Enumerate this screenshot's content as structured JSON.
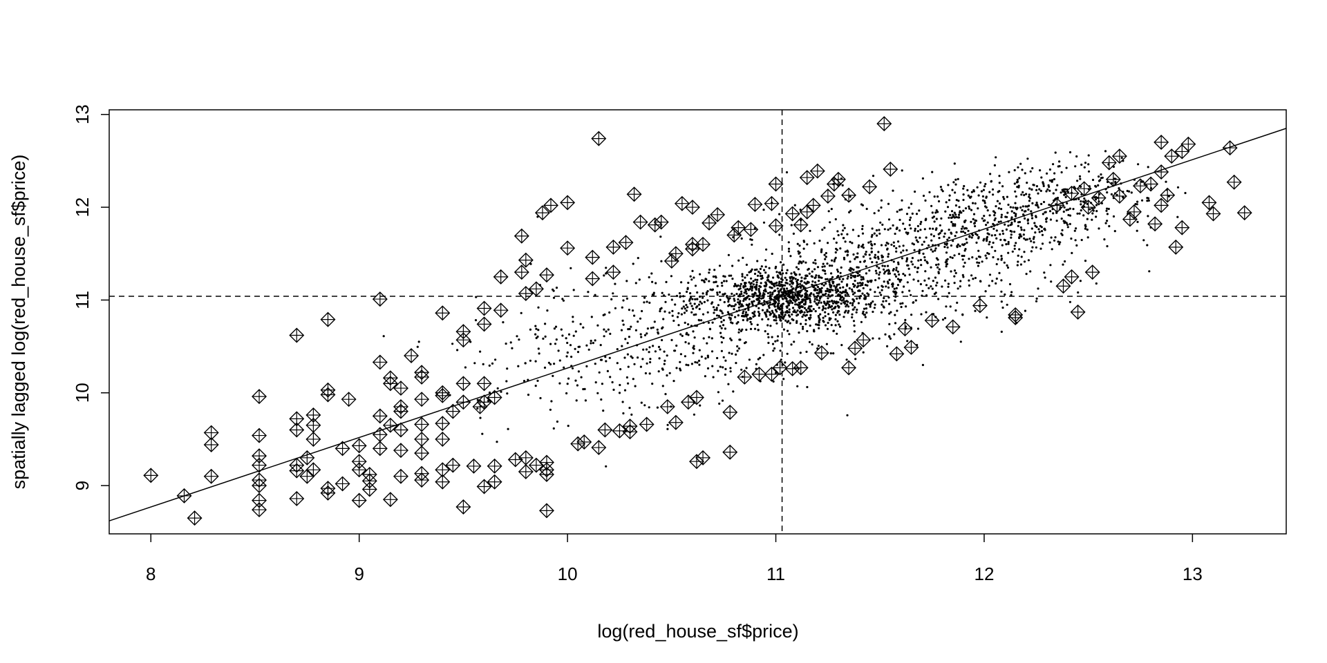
{
  "chart_data": {
    "type": "scatter",
    "title": "",
    "xlabel": "log(red_house_sf$price)",
    "ylabel": "spatially lagged log(red_house_sf$price)",
    "xlim": [
      7.8,
      13.45
    ],
    "ylim": [
      8.48,
      13.05
    ],
    "x_ticks": [
      "8",
      "9",
      "10",
      "11",
      "12",
      "13"
    ],
    "y_ticks": [
      "9",
      "10",
      "11",
      "12",
      "13"
    ],
    "grid": false,
    "legend": "none",
    "mean_lines": {
      "x_mean": 11.03,
      "y_mean": 11.04,
      "style": "dashed"
    },
    "regression_line": {
      "x": [
        7.8,
        13.45
      ],
      "y": [
        8.62,
        12.85
      ]
    },
    "bulk_points_note_free": true,
    "bulk_cloud": {
      "clusters": [
        {
          "x_mean": 11.05,
          "y_mean": 11.02,
          "x_sd": 0.22,
          "y_sd": 0.16,
          "n": 900
        },
        {
          "x_mean": 11.5,
          "y_mean": 11.3,
          "x_sd": 0.35,
          "y_sd": 0.3,
          "n": 600
        },
        {
          "x_mean": 12.0,
          "y_mean": 11.85,
          "x_sd": 0.28,
          "y_sd": 0.25,
          "n": 500
        },
        {
          "x_mean": 10.55,
          "y_mean": 10.65,
          "x_sd": 0.35,
          "y_sd": 0.35,
          "n": 350
        },
        {
          "x_mean": 12.45,
          "y_mean": 12.2,
          "x_sd": 0.2,
          "y_sd": 0.18,
          "n": 200
        },
        {
          "x_mean": 10.0,
          "y_mean": 10.3,
          "x_sd": 0.3,
          "y_sd": 0.35,
          "n": 150
        }
      ]
    },
    "influential_points": [
      [
        8.0,
        9.11
      ],
      [
        8.16,
        8.89
      ],
      [
        8.21,
        8.65
      ],
      [
        8.29,
        9.1
      ],
      [
        8.29,
        9.44
      ],
      [
        8.29,
        9.57
      ],
      [
        8.52,
        8.74
      ],
      [
        8.52,
        8.84
      ],
      [
        8.52,
        9.0
      ],
      [
        8.52,
        9.06
      ],
      [
        8.52,
        9.22
      ],
      [
        8.52,
        9.32
      ],
      [
        8.52,
        9.54
      ],
      [
        8.52,
        9.96
      ],
      [
        8.7,
        8.86
      ],
      [
        8.7,
        9.16
      ],
      [
        8.7,
        9.22
      ],
      [
        8.7,
        9.6
      ],
      [
        8.7,
        9.72
      ],
      [
        8.7,
        10.62
      ],
      [
        8.75,
        9.1
      ],
      [
        8.75,
        9.3
      ],
      [
        8.78,
        9.17
      ],
      [
        8.78,
        9.5
      ],
      [
        8.78,
        9.65
      ],
      [
        8.78,
        9.76
      ],
      [
        8.85,
        8.92
      ],
      [
        8.85,
        8.97
      ],
      [
        8.85,
        9.98
      ],
      [
        8.85,
        10.03
      ],
      [
        8.85,
        10.79
      ],
      [
        8.92,
        9.02
      ],
      [
        8.92,
        9.4
      ],
      [
        8.95,
        9.93
      ],
      [
        9.0,
        8.84
      ],
      [
        9.0,
        9.17
      ],
      [
        9.0,
        9.26
      ],
      [
        9.0,
        9.43
      ],
      [
        9.05,
        8.96
      ],
      [
        9.05,
        9.05
      ],
      [
        9.05,
        9.12
      ],
      [
        9.1,
        9.4
      ],
      [
        9.1,
        9.55
      ],
      [
        9.1,
        9.75
      ],
      [
        9.1,
        10.33
      ],
      [
        9.1,
        11.01
      ],
      [
        9.15,
        8.85
      ],
      [
        9.15,
        9.65
      ],
      [
        9.15,
        10.1
      ],
      [
        9.15,
        10.16
      ],
      [
        9.2,
        9.1
      ],
      [
        9.2,
        9.38
      ],
      [
        9.2,
        9.6
      ],
      [
        9.2,
        9.8
      ],
      [
        9.2,
        9.85
      ],
      [
        9.2,
        10.05
      ],
      [
        9.25,
        10.4
      ],
      [
        9.3,
        9.06
      ],
      [
        9.3,
        9.13
      ],
      [
        9.3,
        9.35
      ],
      [
        9.3,
        9.5
      ],
      [
        9.3,
        9.66
      ],
      [
        9.3,
        9.93
      ],
      [
        9.3,
        10.17
      ],
      [
        9.3,
        10.22
      ],
      [
        9.4,
        9.04
      ],
      [
        9.4,
        9.17
      ],
      [
        9.4,
        9.5
      ],
      [
        9.4,
        9.67
      ],
      [
        9.4,
        9.97
      ],
      [
        9.4,
        10.0
      ],
      [
        9.4,
        10.86
      ],
      [
        9.45,
        9.22
      ],
      [
        9.45,
        9.8
      ],
      [
        9.5,
        8.77
      ],
      [
        9.5,
        9.9
      ],
      [
        9.5,
        10.1
      ],
      [
        9.5,
        10.57
      ],
      [
        9.5,
        10.66
      ],
      [
        9.55,
        9.21
      ],
      [
        9.58,
        9.85
      ],
      [
        9.6,
        8.99
      ],
      [
        9.6,
        9.9
      ],
      [
        9.6,
        10.1
      ],
      [
        9.6,
        10.74
      ],
      [
        9.6,
        10.91
      ],
      [
        9.65,
        9.04
      ],
      [
        9.65,
        9.21
      ],
      [
        9.65,
        9.95
      ],
      [
        9.68,
        10.89
      ],
      [
        9.68,
        11.25
      ],
      [
        9.75,
        9.28
      ],
      [
        9.78,
        11.3
      ],
      [
        9.78,
        11.69
      ],
      [
        9.8,
        9.15
      ],
      [
        9.8,
        9.3
      ],
      [
        9.8,
        11.07
      ],
      [
        9.8,
        11.43
      ],
      [
        9.85,
        9.22
      ],
      [
        9.85,
        11.12
      ],
      [
        9.88,
        11.94
      ],
      [
        9.9,
        8.73
      ],
      [
        9.9,
        9.12
      ],
      [
        9.9,
        9.17
      ],
      [
        9.9,
        9.25
      ],
      [
        9.9,
        11.27
      ],
      [
        9.92,
        12.02
      ],
      [
        10.0,
        11.56
      ],
      [
        10.0,
        12.05
      ],
      [
        10.05,
        9.45
      ],
      [
        10.08,
        9.47
      ],
      [
        10.12,
        11.23
      ],
      [
        10.12,
        11.46
      ],
      [
        10.15,
        9.41
      ],
      [
        10.15,
        12.74
      ],
      [
        10.18,
        9.6
      ],
      [
        10.22,
        11.3
      ],
      [
        10.22,
        11.57
      ],
      [
        10.25,
        9.59
      ],
      [
        10.28,
        11.62
      ],
      [
        10.3,
        9.58
      ],
      [
        10.3,
        9.64
      ],
      [
        10.32,
        12.14
      ],
      [
        10.35,
        11.84
      ],
      [
        10.38,
        9.66
      ],
      [
        10.42,
        11.81
      ],
      [
        10.45,
        11.84
      ],
      [
        10.48,
        9.85
      ],
      [
        10.5,
        11.42
      ],
      [
        10.52,
        9.68
      ],
      [
        10.52,
        11.5
      ],
      [
        10.55,
        12.04
      ],
      [
        10.58,
        9.9
      ],
      [
        10.6,
        11.55
      ],
      [
        10.6,
        11.6
      ],
      [
        10.6,
        12.0
      ],
      [
        10.62,
        9.26
      ],
      [
        10.62,
        9.95
      ],
      [
        10.65,
        9.3
      ],
      [
        10.65,
        11.6
      ],
      [
        10.68,
        11.83
      ],
      [
        10.72,
        11.92
      ],
      [
        10.78,
        9.36
      ],
      [
        10.78,
        9.79
      ],
      [
        10.8,
        11.7
      ],
      [
        10.82,
        11.78
      ],
      [
        10.85,
        10.17
      ],
      [
        10.88,
        11.76
      ],
      [
        10.9,
        12.03
      ],
      [
        10.92,
        10.2
      ],
      [
        10.98,
        10.2
      ],
      [
        10.98,
        12.04
      ],
      [
        11.0,
        11.8
      ],
      [
        11.0,
        12.25
      ],
      [
        11.02,
        10.27
      ],
      [
        11.08,
        10.26
      ],
      [
        11.08,
        11.93
      ],
      [
        11.12,
        10.27
      ],
      [
        11.12,
        11.81
      ],
      [
        11.15,
        11.95
      ],
      [
        11.15,
        12.32
      ],
      [
        11.18,
        12.02
      ],
      [
        11.2,
        12.39
      ],
      [
        11.22,
        10.43
      ],
      [
        11.25,
        12.12
      ],
      [
        11.28,
        12.25
      ],
      [
        11.3,
        12.3
      ],
      [
        11.35,
        10.27
      ],
      [
        11.35,
        12.13
      ],
      [
        11.38,
        10.48
      ],
      [
        11.42,
        10.57
      ],
      [
        11.45,
        12.22
      ],
      [
        11.52,
        12.9
      ],
      [
        11.55,
        12.41
      ],
      [
        11.58,
        10.42
      ],
      [
        11.62,
        10.69
      ],
      [
        11.65,
        10.49
      ],
      [
        11.75,
        10.78
      ],
      [
        11.85,
        10.71
      ],
      [
        11.98,
        10.94
      ],
      [
        12.15,
        10.81
      ],
      [
        12.15,
        10.84
      ],
      [
        12.35,
        12.02
      ],
      [
        12.38,
        11.15
      ],
      [
        12.42,
        11.25
      ],
      [
        12.42,
        12.15
      ],
      [
        12.45,
        10.87
      ],
      [
        12.48,
        12.2
      ],
      [
        12.5,
        12.0
      ],
      [
        12.52,
        11.3
      ],
      [
        12.55,
        12.1
      ],
      [
        12.6,
        12.48
      ],
      [
        12.62,
        12.3
      ],
      [
        12.65,
        12.12
      ],
      [
        12.65,
        12.55
      ],
      [
        12.7,
        11.87
      ],
      [
        12.72,
        11.95
      ],
      [
        12.75,
        12.23
      ],
      [
        12.8,
        12.25
      ],
      [
        12.82,
        11.82
      ],
      [
        12.85,
        12.02
      ],
      [
        12.85,
        12.38
      ],
      [
        12.85,
        12.7
      ],
      [
        12.88,
        12.13
      ],
      [
        12.9,
        12.55
      ],
      [
        12.92,
        11.57
      ],
      [
        12.95,
        11.78
      ],
      [
        12.95,
        12.6
      ],
      [
        12.98,
        12.68
      ],
      [
        13.08,
        12.05
      ],
      [
        13.1,
        11.93
      ],
      [
        13.18,
        12.64
      ],
      [
        13.2,
        12.27
      ],
      [
        13.25,
        11.94
      ]
    ]
  }
}
